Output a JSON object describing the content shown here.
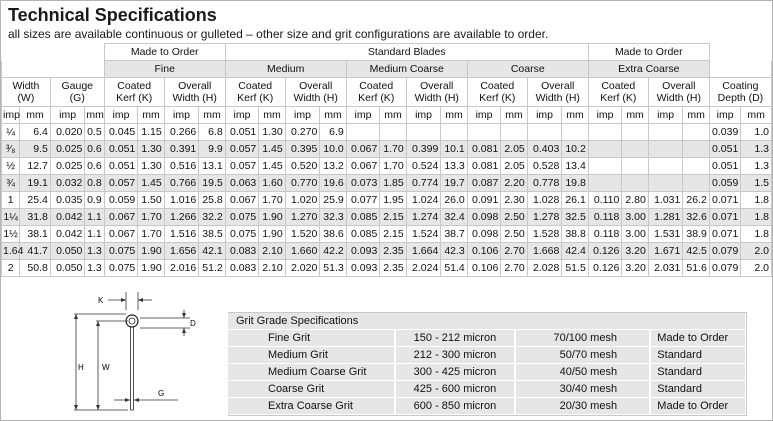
{
  "title": "Technical Specifications",
  "subtitle": "all sizes are available continuous or gulleted – other size and grit configurations are available to order.",
  "header": {
    "made_to_order_1": "Made to Order",
    "standard_blades": "Standard Blades",
    "made_to_order_2": "Made to Order",
    "fine": "Fine",
    "medium": "Medium",
    "medium_coarse": "Medium Coarse",
    "coarse": "Coarse",
    "extra_coarse": "Extra Coarse",
    "width": "Width",
    "width_sub": "(W)",
    "gauge": "Gauge",
    "gauge_sub": "(G)",
    "coated": "Coated",
    "kerf": "Kerf (K)",
    "overall": "Overall",
    "width_h": "Width (H)",
    "coating": "Coating",
    "depth": "Depth (D)",
    "imp": "imp",
    "mm": "mm"
  },
  "rows": [
    [
      "¼",
      "6.4",
      "0.020",
      "0.5",
      "0.045",
      "1.15",
      "0.266",
      "6.8",
      "0.051",
      "1.30",
      "0.270",
      "6.9",
      "",
      "",
      "",
      "",
      "",
      "",
      "",
      "",
      "",
      "",
      "",
      "",
      "0.039",
      "1.0"
    ],
    [
      "³⁄₈",
      "9.5",
      "0.025",
      "0.6",
      "0.051",
      "1.30",
      "0.391",
      "9.9",
      "0.057",
      "1.45",
      "0.395",
      "10.0",
      "0.067",
      "1.70",
      "0.399",
      "10.1",
      "0.081",
      "2.05",
      "0.403",
      "10.2",
      "",
      "",
      "",
      "",
      "0.051",
      "1.3"
    ],
    [
      "½",
      "12.7",
      "0.025",
      "0.6",
      "0.051",
      "1.30",
      "0.516",
      "13.1",
      "0.057",
      "1.45",
      "0.520",
      "13.2",
      "0.067",
      "1.70",
      "0.524",
      "13.3",
      "0.081",
      "2.05",
      "0.528",
      "13.4",
      "",
      "",
      "",
      "",
      "0.051",
      "1.3"
    ],
    [
      "¾",
      "19.1",
      "0.032",
      "0.8",
      "0.057",
      "1.45",
      "0.766",
      "19.5",
      "0.063",
      "1.60",
      "0.770",
      "19.6",
      "0.073",
      "1.85",
      "0.774",
      "19.7",
      "0.087",
      "2.20",
      "0.778",
      "19.8",
      "",
      "",
      "",
      "",
      "0.059",
      "1.5"
    ],
    [
      "1",
      "25.4",
      "0.035",
      "0.9",
      "0.059",
      "1.50",
      "1.016",
      "25.8",
      "0.067",
      "1.70",
      "1.020",
      "25.9",
      "0.077",
      "1.95",
      "1.024",
      "26.0",
      "0.091",
      "2.30",
      "1.028",
      "26.1",
      "0.110",
      "2.80",
      "1.031",
      "26.2",
      "0.071",
      "1.8"
    ],
    [
      "1¼",
      "31.8",
      "0.042",
      "1.1",
      "0.067",
      "1.70",
      "1.266",
      "32.2",
      "0.075",
      "1.90",
      "1.270",
      "32.3",
      "0.085",
      "2.15",
      "1.274",
      "32.4",
      "0.098",
      "2.50",
      "1.278",
      "32.5",
      "0.118",
      "3.00",
      "1.281",
      "32.6",
      "0.071",
      "1.8"
    ],
    [
      "1½",
      "38.1",
      "0.042",
      "1.1",
      "0.067",
      "1.70",
      "1.516",
      "38.5",
      "0.075",
      "1.90",
      "1.520",
      "38.6",
      "0.085",
      "2.15",
      "1.524",
      "38.7",
      "0.098",
      "2.50",
      "1.528",
      "38.8",
      "0.118",
      "3.00",
      "1.531",
      "38.9",
      "0.071",
      "1.8"
    ],
    [
      "1.64",
      "41.7",
      "0.050",
      "1.3",
      "0.075",
      "1.90",
      "1.656",
      "42.1",
      "0.083",
      "2.10",
      "1.660",
      "42.2",
      "0.093",
      "2.35",
      "1.664",
      "42.3",
      "0.106",
      "2.70",
      "1.668",
      "42.4",
      "0.126",
      "3.20",
      "1.671",
      "42.5",
      "0.079",
      "2.0"
    ],
    [
      "2",
      "50.8",
      "0.050",
      "1.3",
      "0.075",
      "1.90",
      "2.016",
      "51.2",
      "0.083",
      "2.10",
      "2.020",
      "51.3",
      "0.093",
      "2.35",
      "2.024",
      "51.4",
      "0.106",
      "2.70",
      "2.028",
      "51.5",
      "0.126",
      "3.20",
      "2.031",
      "51.6",
      "0.079",
      "2.0"
    ]
  ],
  "diagram": {
    "k": "K",
    "d": "D",
    "h": "H",
    "w": "W",
    "g": "G"
  },
  "grit": {
    "title": "Grit Grade Specifications",
    "rows": [
      {
        "grade": "Fine Grit",
        "micron": "150 - 212 micron",
        "mesh": "70/100 mesh",
        "availability": "Made to Order"
      },
      {
        "grade": "Medium Grit",
        "micron": "212 - 300 micron",
        "mesh": "50/70 mesh",
        "availability": "Standard"
      },
      {
        "grade": "Medium Coarse Grit",
        "micron": "300 - 425 micron",
        "mesh": "40/50 mesh",
        "availability": "Standard"
      },
      {
        "grade": "Coarse Grit",
        "micron": "425 - 600 micron",
        "mesh": "30/40 mesh",
        "availability": "Standard"
      },
      {
        "grade": "Extra Coarse Grit",
        "micron": "600 - 850 micron",
        "mesh": "20/30 mesh",
        "availability": "Made to Order"
      }
    ]
  }
}
